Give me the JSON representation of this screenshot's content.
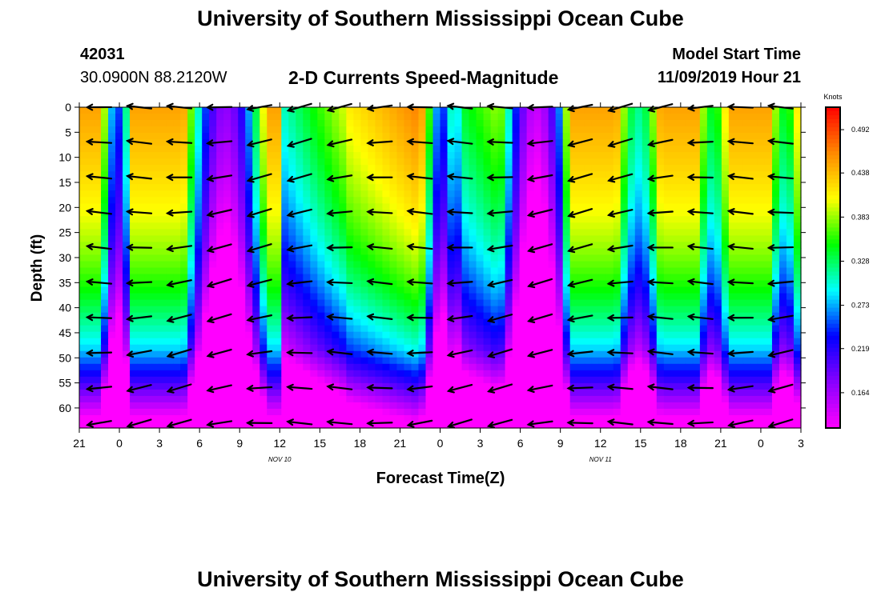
{
  "page": {
    "title_top": "University of Southern Mississippi Ocean Cube",
    "title_bottom": "University of Southern Mississippi Ocean Cube",
    "station_id": "42031",
    "coordinates": "30.0900N 88.2120W",
    "plot_title": "2-D Currents Speed-Magnitude",
    "model_start_label": "Model Start Time",
    "model_start_value": "11/09/2019 Hour 21"
  },
  "chart_data": {
    "type": "heatmap",
    "title": "2-D Currents Speed-Magnitude",
    "xlabel": "Forecast Time(Z)",
    "ylabel": "Depth (ft)",
    "x_tick_labels": [
      "21",
      "0",
      "3",
      "6",
      "9",
      "12",
      "15",
      "18",
      "21",
      "0",
      "3",
      "6",
      "9",
      "12",
      "15",
      "18",
      "21",
      "0",
      "3"
    ],
    "date_labels": [
      {
        "text": "NOV 10",
        "at_tick": 5
      },
      {
        "text": "NOV 11",
        "at_tick": 13
      }
    ],
    "y_ticks": [
      0,
      5,
      10,
      15,
      20,
      25,
      30,
      35,
      40,
      45,
      50,
      55,
      60
    ],
    "ylim": [
      0,
      64
    ],
    "colorbar": {
      "unit": "Knots",
      "labels": [
        "0.492",
        "0.438",
        "0.383",
        "0.328",
        "0.273",
        "0.219",
        "0.164"
      ],
      "range": [
        0.12,
        0.52
      ],
      "colors": [
        "#ff00ff",
        "#8800ff",
        "#0000ff",
        "#00ffff",
        "#00ff00",
        "#ffff00",
        "#ff8800",
        "#ff0000"
      ]
    },
    "grid": false
  }
}
